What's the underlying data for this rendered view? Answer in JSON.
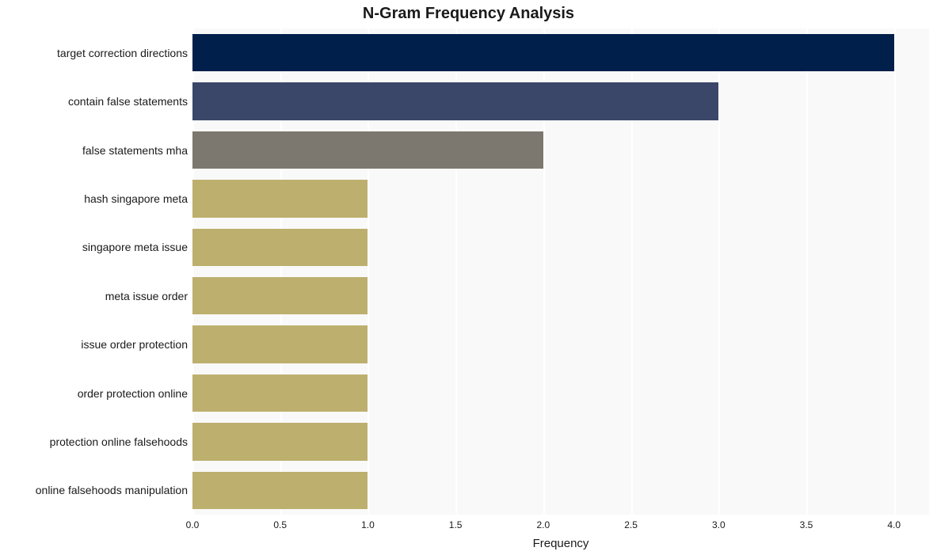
{
  "chart": {
    "type": "bar",
    "orientation": "horizontal",
    "title": "N-Gram Frequency Analysis",
    "title_fontsize": 20,
    "title_fontweight": "bold",
    "xlabel": "Frequency",
    "xlabel_fontsize": 15,
    "background_color": "#ffffff",
    "plot_background_color": "#f9f9f9",
    "grid_color": "#ffffff",
    "grid_linewidth": 2,
    "x_min": 0.0,
    "x_max": 4.2,
    "x_tick_step": 0.5,
    "x_ticks": [
      "0.0",
      "0.5",
      "1.0",
      "1.5",
      "2.0",
      "2.5",
      "3.0",
      "3.5",
      "4.0"
    ],
    "y_tick_fontsize": 14,
    "x_tick_fontsize": 12,
    "bar_height_ratio": 0.77,
    "categories": [
      "target correction directions",
      "contain false statements",
      "false statements mha",
      "hash singapore meta",
      "singapore meta issue",
      "meta issue order",
      "issue order protection",
      "order protection online",
      "protection online falsehoods",
      "online falsehoods manipulation"
    ],
    "values": [
      4,
      3,
      2,
      1,
      1,
      1,
      1,
      1,
      1,
      1
    ],
    "bar_colors": [
      "#001f4a",
      "#3a4768",
      "#7c786f",
      "#bdaf6e",
      "#bdaf6e",
      "#bdaf6e",
      "#bdaf6e",
      "#bdaf6e",
      "#bdaf6e",
      "#bdaf6e"
    ]
  }
}
